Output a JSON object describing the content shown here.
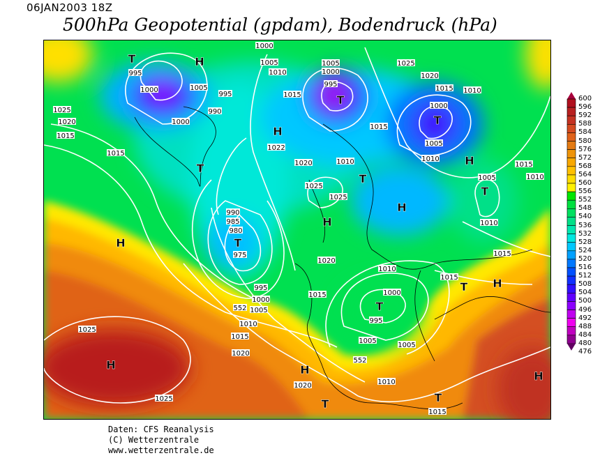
{
  "header": {
    "date": "06JAN2003 18Z",
    "title": "500hPa Geopotential (gpdam), Bodendruck (hPa)"
  },
  "footer": {
    "source": "Daten: CFS Reanalysis",
    "copyright": "(C) Wetterzentrale",
    "url": "www.wetterzentrale.de"
  },
  "legend": {
    "unit": "gpdam",
    "labels": [
      "600",
      "596",
      "592",
      "588",
      "584",
      "580",
      "576",
      "572",
      "568",
      "564",
      "560",
      "556",
      "552",
      "548",
      "540",
      "536",
      "532",
      "528",
      "524",
      "520",
      "516",
      "512",
      "508",
      "504",
      "500",
      "496",
      "492",
      "488",
      "484",
      "480",
      "476"
    ],
    "colors": [
      "#a8003c",
      "#b0101e",
      "#b82020",
      "#c43222",
      "#d44a20",
      "#e0621a",
      "#e47a12",
      "#ee940a",
      "#f8a800",
      "#ffc000",
      "#ffdc00",
      "#fff000",
      "#00e600",
      "#00e040",
      "#00e060",
      "#00e088",
      "#00e8b0",
      "#00e8e0",
      "#00c8ff",
      "#00a0ff",
      "#0078ff",
      "#0050ff",
      "#1030ff",
      "#3010ff",
      "#6000ff",
      "#8c00ff",
      "#c000f0",
      "#f000f0",
      "#c000c0",
      "#900090",
      "#600060"
    ]
  },
  "map": {
    "pressure_labels": [
      "1000",
      "1005",
      "1010",
      "1005",
      "1000",
      "995",
      "995",
      "1000",
      "1005",
      "995",
      "990",
      "1000",
      "1025",
      "1020",
      "1015",
      "1015",
      "1015",
      "1025",
      "1020",
      "1015",
      "1010",
      "1000",
      "1005",
      "1010",
      "1015",
      "1010",
      "1020",
      "1022",
      "1025",
      "1025",
      "1015",
      "1010",
      "1005",
      "1010",
      "1015",
      "1015",
      "1010",
      "1000",
      "995",
      "1005",
      "1005",
      "1010",
      "1015",
      "1020",
      "1015",
      "995",
      "1000",
      "1005",
      "1010",
      "1015",
      "1020",
      "1025",
      "1025",
      "1020",
      "552",
      "552",
      "990",
      "985",
      "980",
      "975"
    ],
    "pressure_centers": [
      "T",
      "H",
      "T",
      "T",
      "H",
      "T",
      "H",
      "T",
      "H",
      "H",
      "T",
      "T",
      "H",
      "T",
      "H",
      "T",
      "H",
      "H",
      "T",
      "T",
      "H"
    ]
  }
}
